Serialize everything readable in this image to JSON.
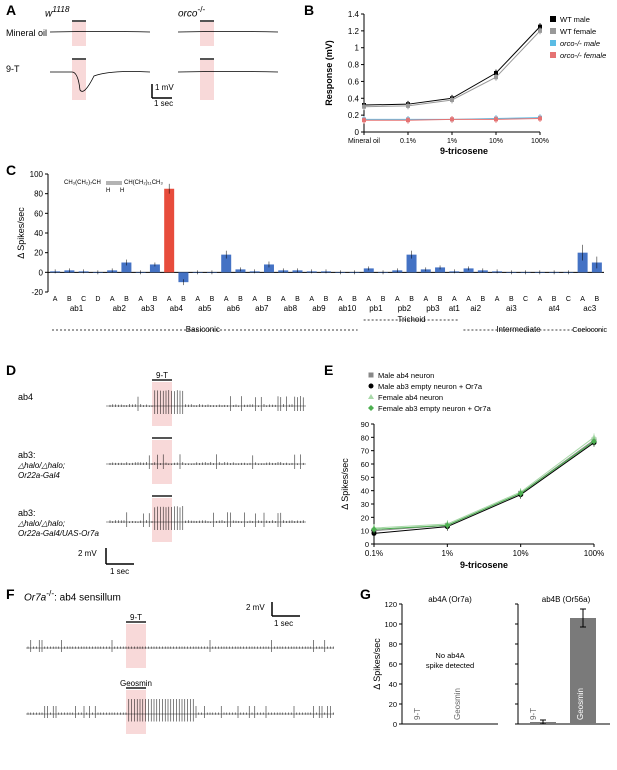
{
  "panels": {
    "A": {
      "label": "A",
      "left_title": "w",
      "left_sup": "1118",
      "right_title": "orco",
      "right_sup": "-/-",
      "row_labels": [
        "Mineral oil",
        "9-T"
      ],
      "scale_y": "1 mV",
      "scale_x": "1 sec",
      "trace_color": "#000000",
      "highlight_color": "#f8d9d9"
    },
    "B": {
      "label": "B",
      "ylabel": "Response (mV)",
      "xlabel": "9-tricosene",
      "xticks": [
        "Mineral oil",
        "0.1%",
        "1%",
        "10%",
        "100%"
      ],
      "yticks": [
        0,
        0.2,
        0.4,
        0.6,
        0.8,
        1.0,
        1.2,
        1.4
      ],
      "ylim": [
        0,
        1.4
      ],
      "legend": [
        {
          "label": "WT male",
          "color": "#000000",
          "marker": "square"
        },
        {
          "label": "WT female",
          "color": "#999999",
          "marker": "square"
        },
        {
          "label": "orco-/- male",
          "color": "#5bbce4",
          "marker": "square",
          "italic": true
        },
        {
          "label": "orco-/- female",
          "color": "#e57373",
          "marker": "square",
          "italic": true
        }
      ],
      "series": {
        "WT_male": [
          0.32,
          0.33,
          0.4,
          0.7,
          1.25
        ],
        "WT_female": [
          0.3,
          0.31,
          0.38,
          0.65,
          1.2
        ],
        "orco_male": [
          0.15,
          0.15,
          0.15,
          0.16,
          0.17
        ],
        "orco_female": [
          0.14,
          0.14,
          0.15,
          0.15,
          0.16
        ]
      },
      "err": 0.04,
      "axis_color": "#000000",
      "label_fontsize": 10
    },
    "C": {
      "label": "C",
      "ylabel": "Δ Spikes/sec",
      "formula_left": "CH₃(CH₂)₇CH",
      "formula_right": "CH(CH₂)₁₁CH₃",
      "formula_mid_left": "H",
      "formula_mid_right": "H",
      "yticks": [
        -20,
        0,
        20,
        40,
        60,
        80,
        100
      ],
      "ylim": [
        -20,
        100
      ],
      "categories": [
        {
          "name": "ab1",
          "subs": [
            "A",
            "B",
            "C",
            "D"
          ]
        },
        {
          "name": "ab2",
          "subs": [
            "A",
            "B"
          ]
        },
        {
          "name": "ab3",
          "subs": [
            "A",
            "B"
          ]
        },
        {
          "name": "ab4",
          "subs": [
            "A",
            "B"
          ]
        },
        {
          "name": "ab5",
          "subs": [
            "A",
            "B"
          ]
        },
        {
          "name": "ab6",
          "subs": [
            "A",
            "B"
          ]
        },
        {
          "name": "ab7",
          "subs": [
            "A",
            "B"
          ]
        },
        {
          "name": "ab8",
          "subs": [
            "A",
            "B"
          ]
        },
        {
          "name": "ab9",
          "subs": [
            "A",
            "B"
          ]
        },
        {
          "name": "ab10",
          "subs": [
            "A",
            "B"
          ]
        },
        {
          "name": "pb1",
          "subs": [
            "A",
            "B"
          ]
        },
        {
          "name": "pb2",
          "subs": [
            "A",
            "B"
          ]
        },
        {
          "name": "pb3",
          "subs": [
            "A",
            "B"
          ]
        },
        {
          "name": "at1",
          "subs": [
            "A"
          ]
        },
        {
          "name": "ai2",
          "subs": [
            "A",
            "B"
          ]
        },
        {
          "name": "ai3",
          "subs": [
            "A",
            "B",
            "C"
          ]
        },
        {
          "name": "at4",
          "subs": [
            "A",
            "B",
            "C"
          ]
        },
        {
          "name": "ac3",
          "subs": [
            "A",
            "B"
          ]
        }
      ],
      "values": [
        1,
        2,
        1,
        0,
        2,
        10,
        0,
        8,
        85,
        -10,
        0,
        0,
        18,
        3,
        1,
        8,
        2,
        2,
        1,
        1,
        0,
        0,
        4,
        0,
        2,
        18,
        3,
        5,
        1,
        4,
        2,
        1,
        0,
        0,
        0,
        0,
        0,
        20,
        10
      ],
      "err": [
        2,
        2,
        2,
        2,
        2,
        3,
        2,
        2,
        5,
        3,
        2,
        2,
        4,
        2,
        2,
        3,
        2,
        2,
        2,
        2,
        2,
        2,
        2,
        2,
        2,
        4,
        2,
        2,
        2,
        2,
        2,
        2,
        2,
        2,
        2,
        2,
        2,
        8,
        6
      ],
      "highlight_index": 8,
      "bar_color": "#4472c4",
      "highlight_color": "#e74c3c",
      "class_labels": [
        "Basiconic",
        "Trichoid",
        "Intermediate",
        "Coeloconic"
      ],
      "class_ranges": [
        [
          0,
          22
        ],
        [
          22,
          29
        ],
        [
          29,
          37
        ],
        [
          37,
          39
        ]
      ]
    },
    "D": {
      "label": "D",
      "stim": "9-T",
      "rows": [
        {
          "label": "ab4",
          "sublabel": ""
        },
        {
          "label": "ab3:",
          "sublabel": "△halo/△halo;\nOr22a-Gal4"
        },
        {
          "label": "ab3:",
          "sublabel": "△halo/△halo;\nOr22a-Gal4/UAS-Or7a"
        }
      ],
      "scale_y": "2 mV",
      "scale_x": "1 sec",
      "highlight_color": "#f8d9d9",
      "trace_color": "#000000"
    },
    "E": {
      "label": "E",
      "ylabel": "Δ Spikes/sec",
      "xlabel": "9-tricosene",
      "xticks": [
        "0.1%",
        "1%",
        "10%",
        "100%"
      ],
      "yticks": [
        0,
        10,
        20,
        30,
        40,
        50,
        60,
        70,
        80,
        90
      ],
      "ylim": [
        0,
        90
      ],
      "legend": [
        {
          "label": "Male ab4 neuron",
          "color": "#888888",
          "marker": "square"
        },
        {
          "label": "Male ab3 empty neuron + Or7a",
          "color": "#000000",
          "marker": "circle"
        },
        {
          "label": "Female ab4 neuron",
          "color": "#a8d8a8",
          "marker": "triangle"
        },
        {
          "label": "Female ab3 empty neuron + Or7a",
          "color": "#4caf50",
          "marker": "diamond"
        }
      ],
      "series": {
        "m_ab4": [
          10,
          14,
          38,
          78
        ],
        "m_ab3": [
          8,
          13,
          37,
          76
        ],
        "f_ab4": [
          12,
          15,
          39,
          80
        ],
        "f_ab3": [
          11,
          14,
          38,
          77
        ]
      },
      "err": 3
    },
    "F": {
      "label": "F",
      "title_pre": "Or7a",
      "title_sup": "-/-",
      "title_post": ": ab4 sensillum",
      "stims": [
        "9-T",
        "Geosmin"
      ],
      "scale_y": "2 mV",
      "scale_x": "1 sec",
      "highlight_color": "#f8d9d9"
    },
    "G": {
      "label": "G",
      "ylabel": "Δ Spikes/sec",
      "yticks": [
        0,
        20,
        40,
        60,
        80,
        100,
        120
      ],
      "ylim": [
        0,
        120
      ],
      "subtitles": [
        "ab4A (Or7a)",
        "ab4B (Or56a)"
      ],
      "cats": [
        "9-T",
        "Geosmin"
      ],
      "left_note": "No ab4A\nspike detected",
      "right_values": [
        2,
        106
      ],
      "right_err": [
        2,
        9
      ],
      "bar_color": "#7a7a7a"
    }
  }
}
